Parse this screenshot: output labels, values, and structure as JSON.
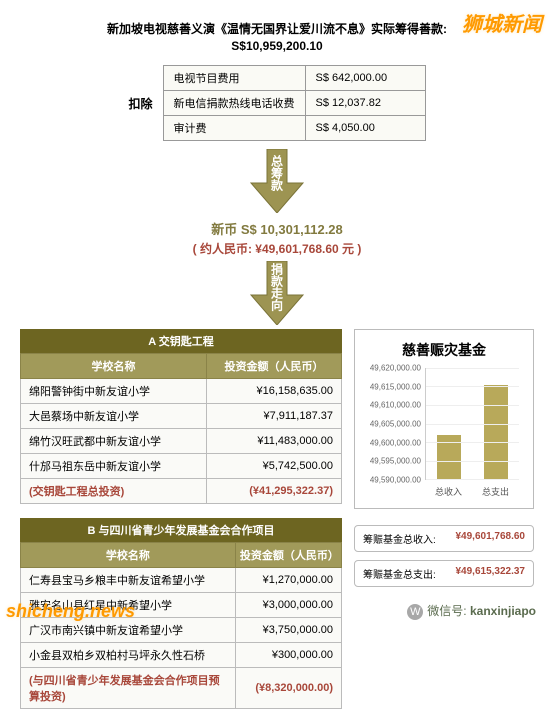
{
  "watermarks": {
    "top_right": "狮城新闻",
    "bottom_left": "shicheng.news",
    "bottom_right_label": "微信号:",
    "bottom_right_id": "kanxinjiapo"
  },
  "header": {
    "title": "新加坡电视慈善义演《温情无国界让爱川流不息》实际筹得善款:",
    "amount": "S$10,959,200.10"
  },
  "deduct": {
    "label": "扣除",
    "rows": [
      {
        "name": "电视节目费用",
        "amount": "S$ 642,000.00"
      },
      {
        "name": "新电信捐款热线电话收费",
        "amount": "S$ 12,037.82"
      },
      {
        "name": "审计费",
        "amount": "S$ 4,050.00"
      }
    ]
  },
  "arrows": {
    "first": "总筹款",
    "second": "捐款走向"
  },
  "net": {
    "sgd": "新币 S$ 10,301,112.28",
    "rmb": "( 约人民币: ¥49,601,768.60 元 )"
  },
  "section_a": {
    "title": "A 交钥匙工程",
    "col_school": "学校名称",
    "col_amount": "投资金额（人民币）",
    "rows": [
      {
        "school": "绵阳警钟街中新友谊小学",
        "amount": "¥16,158,635.00"
      },
      {
        "school": "大邑蔡场中新友谊小学",
        "amount": "¥7,911,187.37"
      },
      {
        "school": "绵竹汉旺武都中新友谊小学",
        "amount": "¥11,483,000.00"
      },
      {
        "school": "什邡马祖东岳中新友谊小学",
        "amount": "¥5,742,500.00"
      }
    ],
    "total_label": "(交钥匙工程总投资)",
    "total_amount": "(¥41,295,322.37)"
  },
  "section_b": {
    "title": "B 与四川省青少年发展基金会合作项目",
    "col_school": "学校名称",
    "col_amount": "投资金额（人民币）",
    "rows": [
      {
        "school": "仁寿县宝马乡粮丰中新友谊希望小学",
        "amount": "¥1,270,000.00"
      },
      {
        "school": "雅安名山县红星中新希望小学",
        "amount": "¥3,000,000.00"
      },
      {
        "school": "广汉市南兴镇中新友谊希望小学",
        "amount": "¥3,750,000.00"
      },
      {
        "school": "小金县双柏乡双柏村马坪永久性石桥",
        "amount": "¥300,000.00"
      }
    ],
    "total_label": "(与四川省青少年发展基金会合作项目预算投资)",
    "total_amount": "(¥8,320,000.00)"
  },
  "fund": {
    "title": "慈善赈灾基金",
    "chart": {
      "type": "bar",
      "ylim": [
        49590000,
        49620000
      ],
      "yticks": [
        {
          "v": 49590000,
          "l": "49,590,000.00"
        },
        {
          "v": 49595000,
          "l": "49,595,000.00"
        },
        {
          "v": 49600000,
          "l": "49,600,000.00"
        },
        {
          "v": 49605000,
          "l": "49,605,000.00"
        },
        {
          "v": 49610000,
          "l": "49,610,000.00"
        },
        {
          "v": 49615000,
          "l": "49,615,000.00"
        },
        {
          "v": 49620000,
          "l": "49,620,000.00"
        }
      ],
      "bars": [
        {
          "label": "总收入",
          "value": 49601768.6,
          "color": "#b8a95a"
        },
        {
          "label": "总支出",
          "value": 49615322.37,
          "color": "#b8a95a"
        }
      ],
      "grid_color": "#eee",
      "bg": "#ffffff"
    },
    "summary": [
      {
        "label": "筹赈基金总收入:",
        "value": "¥49,601,768.60"
      },
      {
        "label": "筹赈基金总支出:",
        "value": "¥49,615,322.37"
      }
    ]
  }
}
